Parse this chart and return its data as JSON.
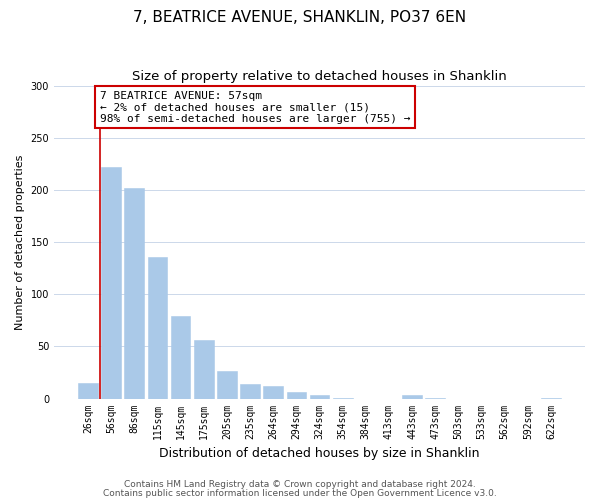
{
  "title": "7, BEATRICE AVENUE, SHANKLIN, PO37 6EN",
  "subtitle": "Size of property relative to detached houses in Shanklin",
  "xlabel": "Distribution of detached houses by size in Shanklin",
  "ylabel": "Number of detached properties",
  "bar_labels": [
    "26sqm",
    "56sqm",
    "86sqm",
    "115sqm",
    "145sqm",
    "175sqm",
    "205sqm",
    "235sqm",
    "264sqm",
    "294sqm",
    "324sqm",
    "354sqm",
    "384sqm",
    "413sqm",
    "443sqm",
    "473sqm",
    "503sqm",
    "533sqm",
    "562sqm",
    "592sqm",
    "622sqm"
  ],
  "bar_values": [
    15,
    222,
    202,
    136,
    79,
    56,
    26,
    14,
    12,
    6,
    3,
    1,
    0,
    0,
    3,
    1,
    0,
    0,
    0,
    0,
    1
  ],
  "bar_color": "#aac9e8",
  "bar_edge_color": "#aac9e8",
  "vline_x_index": 1,
  "vline_color": "#cc0000",
  "annotation_line1": "7 BEATRICE AVENUE: 57sqm",
  "annotation_line2": "← 2% of detached houses are smaller (15)",
  "annotation_line3": "98% of semi-detached houses are larger (755) →",
  "annotation_box_edgecolor": "#cc0000",
  "annotation_box_facecolor": "#ffffff",
  "ylim": [
    0,
    300
  ],
  "yticks": [
    0,
    50,
    100,
    150,
    200,
    250,
    300
  ],
  "footer_line1": "Contains HM Land Registry data © Crown copyright and database right 2024.",
  "footer_line2": "Contains public sector information licensed under the Open Government Licence v3.0.",
  "background_color": "#ffffff",
  "grid_color": "#ccd8ea",
  "title_fontsize": 11,
  "subtitle_fontsize": 9.5,
  "xlabel_fontsize": 9,
  "ylabel_fontsize": 8,
  "tick_fontsize": 7,
  "annotation_fontsize": 8,
  "footer_fontsize": 6.5
}
